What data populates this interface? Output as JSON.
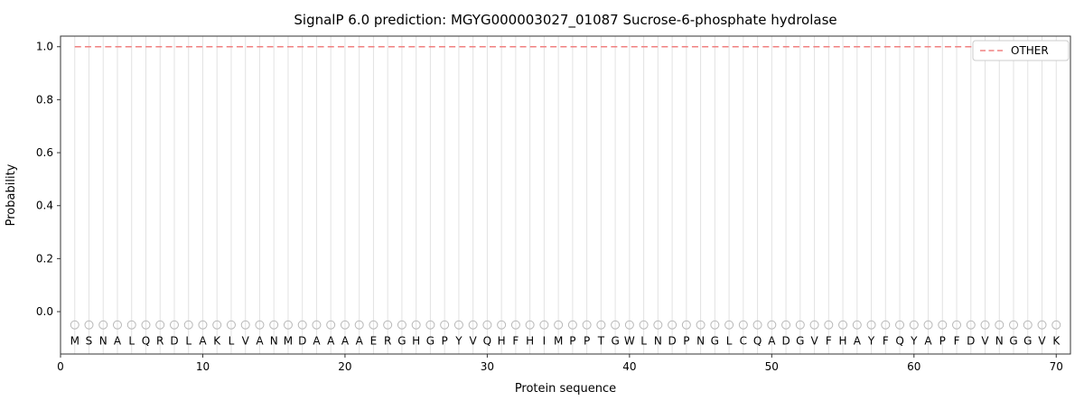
{
  "figure": {
    "title": "SignalP 6.0 prediction: MGYG000003027_01087 Sucrose-6-phosphate hydrolase",
    "xlabel": "Protein sequence",
    "ylabel": "Probability",
    "legend": {
      "label": "OTHER"
    }
  },
  "colors": {
    "line": "#f08080",
    "grid": "#e2e2e2",
    "spine": "#333333",
    "marker": "#b8b8b8",
    "letters": "#2b2b2b",
    "legend_border": "#cccccc",
    "background": "#ffffff"
  },
  "chart_data": {
    "type": "line",
    "title": "SignalP 6.0 prediction: MGYG000003027_01087 Sucrose-6-phosphate hydrolase",
    "xlabel": "Protein sequence",
    "ylabel": "Probability",
    "xlim": [
      0,
      71
    ],
    "ylim": [
      -0.16,
      1.04
    ],
    "x_ticks": [
      0,
      10,
      20,
      30,
      40,
      50,
      60,
      70
    ],
    "y_ticks": [
      0.0,
      0.2,
      0.4,
      0.6,
      0.8,
      1.0
    ],
    "grid": "vertical gridline at every residue position",
    "legend_position": "upper right",
    "sequence": "MSNALQRDLAKLVANMDAAAAERGHGPYVQHFHIMPPTGWLNDPNGLCQADGVFHAYFQYAPFDVNGGVK",
    "series": [
      {
        "name": "OTHER",
        "style": "dashed",
        "color": "#f08080",
        "x_start": 1,
        "values": [
          1.0,
          1.0,
          1.0,
          1.0,
          1.0,
          1.0,
          1.0,
          1.0,
          1.0,
          1.0,
          1.0,
          1.0,
          1.0,
          1.0,
          1.0,
          1.0,
          1.0,
          1.0,
          1.0,
          1.0,
          1.0,
          1.0,
          1.0,
          1.0,
          1.0,
          1.0,
          1.0,
          1.0,
          1.0,
          1.0,
          1.0,
          1.0,
          1.0,
          1.0,
          1.0,
          1.0,
          1.0,
          1.0,
          1.0,
          1.0,
          1.0,
          1.0,
          1.0,
          1.0,
          1.0,
          1.0,
          1.0,
          1.0,
          1.0,
          1.0,
          1.0,
          1.0,
          1.0,
          1.0,
          1.0,
          1.0,
          1.0,
          1.0,
          1.0,
          1.0,
          1.0,
          1.0,
          1.0,
          1.0,
          1.0,
          1.0,
          1.0,
          1.0,
          1.0,
          1.0
        ]
      }
    ],
    "marker_row": {
      "y": -0.05,
      "symbol": "open-circle"
    },
    "letter_row_y": -0.11
  }
}
